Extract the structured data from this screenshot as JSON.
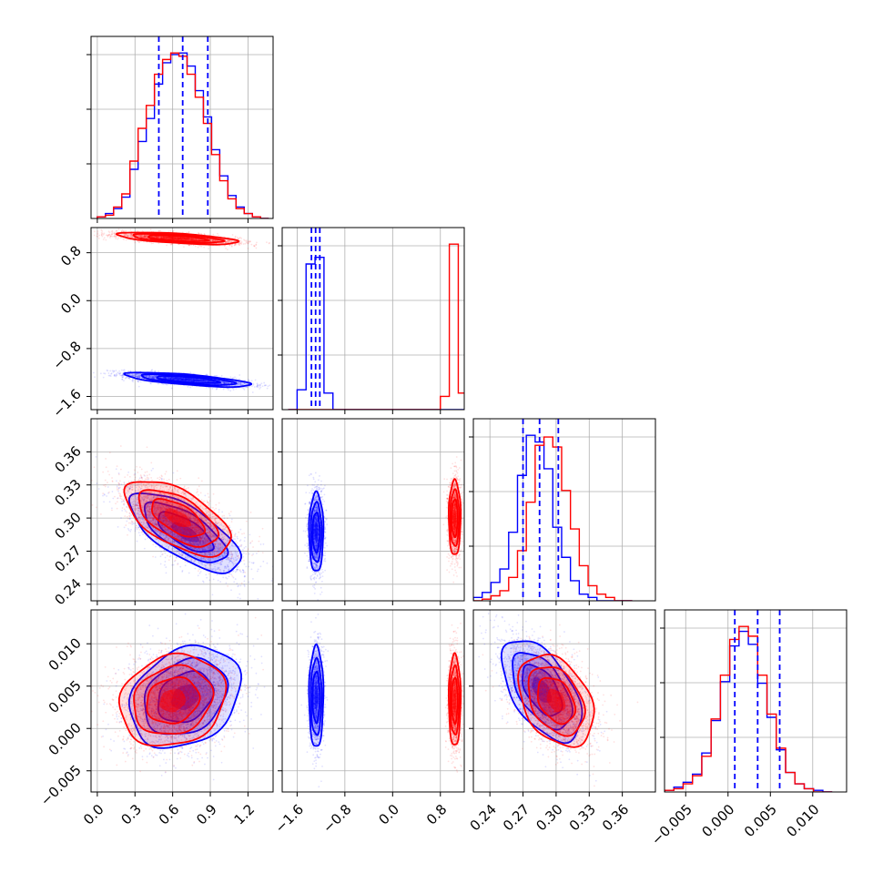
{
  "figure": {
    "type": "corner-plot",
    "series_colors": {
      "blue": "#0000ff",
      "red": "#ff0000"
    },
    "quantile_line_color": "#0000ff",
    "grid": true
  },
  "chart_data": [
    {
      "type": "histogram",
      "param_index": 0,
      "xlim": [
        -0.05,
        1.4
      ],
      "bin_edges": [
        0.0,
        0.065,
        0.13,
        0.195,
        0.26,
        0.325,
        0.39,
        0.455,
        0.52,
        0.585,
        0.65,
        0.715,
        0.78,
        0.845,
        0.91,
        0.975,
        1.04,
        1.105,
        1.17,
        1.235,
        1.3,
        1.365
      ],
      "series": [
        {
          "color": "blue",
          "counts": [
            1,
            3,
            6,
            13,
            30,
            47,
            61,
            82,
            95,
            100,
            101,
            93,
            78,
            62,
            42,
            26,
            14,
            7,
            3,
            1,
            0
          ]
        },
        {
          "color": "red",
          "counts": [
            1,
            2,
            7,
            15,
            35,
            55,
            69,
            88,
            97,
            101,
            99,
            88,
            74,
            58,
            39,
            23,
            12,
            6,
            3,
            1,
            0
          ]
        }
      ],
      "quantiles": [
        0.49,
        0.68,
        0.88
      ]
    },
    {
      "type": "histogram",
      "param_index": 1,
      "xlim": [
        -1.85,
        1.2
      ],
      "bin_edges": [
        -1.75,
        -1.6,
        -1.45,
        -1.3,
        -1.15,
        -1.0,
        -0.85,
        -0.7,
        -0.55,
        -0.4,
        -0.25,
        -0.1,
        0.05,
        0.2,
        0.35,
        0.5,
        0.65,
        0.8,
        0.95,
        1.1,
        1.25
      ],
      "series": [
        {
          "color": "blue",
          "counts": [
            0,
            0.6,
            4.4,
            4.6,
            0.5,
            0,
            0,
            0,
            0,
            0,
            0,
            0,
            0,
            0,
            0,
            0,
            0,
            0,
            0,
            0
          ]
        },
        {
          "color": "red",
          "counts": [
            0,
            0,
            0,
            0,
            0,
            0,
            0,
            0,
            0,
            0,
            0,
            0,
            0,
            0,
            0,
            0,
            0,
            0.4,
            5.0,
            0.5
          ]
        }
      ],
      "quantiles": [
        -1.36,
        -1.29,
        -1.22
      ]
    },
    {
      "type": "histogram",
      "param_index": 2,
      "xlim": [
        0.225,
        0.39
      ],
      "bin_edges": [
        0.225,
        0.233,
        0.241,
        0.249,
        0.257,
        0.265,
        0.273,
        0.281,
        0.289,
        0.297,
        0.305,
        0.313,
        0.321,
        0.329,
        0.337,
        0.345,
        0.353,
        0.361,
        0.369,
        0.377
      ],
      "series": [
        {
          "color": "blue",
          "counts": [
            2,
            5,
            11,
            19,
            41,
            75,
            99,
            95,
            79,
            44,
            26,
            12,
            4,
            2,
            0,
            0,
            0,
            0
          ]
        },
        {
          "color": "red",
          "counts": [
            0,
            1,
            3,
            6,
            14,
            30,
            59,
            93,
            98,
            92,
            66,
            43,
            21,
            9,
            4,
            2,
            0,
            0
          ]
        }
      ],
      "quantiles": [
        0.27,
        0.285,
        0.302
      ]
    },
    {
      "type": "histogram",
      "param_index": 3,
      "xlim": [
        -0.0075,
        0.014
      ],
      "bin_edges": [
        -0.0075,
        -0.0064,
        -0.0053,
        -0.0042,
        -0.0031,
        -0.002,
        -0.0009,
        0.0002,
        0.0013,
        0.0024,
        0.0035,
        0.0046,
        0.0057,
        0.0068,
        0.0079,
        0.009,
        0.0101,
        0.0112,
        0.0123,
        0.0134
      ],
      "series": [
        {
          "color": "blue",
          "counts": [
            1,
            3,
            6,
            11,
            24,
            44,
            68,
            90,
            99,
            91,
            67,
            46,
            26,
            12,
            5,
            2,
            1,
            0
          ]
        },
        {
          "color": "red",
          "counts": [
            1,
            2,
            5,
            10,
            22,
            45,
            72,
            94,
            102,
            96,
            72,
            48,
            27,
            12,
            5,
            2,
            0,
            0
          ]
        }
      ],
      "quantiles": [
        0.0008,
        0.0035,
        0.0061
      ]
    },
    {
      "type": "contour",
      "panel": [
        1,
        0
      ],
      "xlim": [
        -0.05,
        1.4
      ],
      "ylim": [
        -1.82,
        1.22
      ],
      "series": [
        {
          "color": "blue",
          "center": [
            0.72,
            -1.32
          ],
          "sd": [
            0.25,
            0.06
          ],
          "corr": -0.7,
          "n_points": 2200
        },
        {
          "color": "red",
          "center": [
            0.64,
            1.04
          ],
          "sd": [
            0.24,
            0.05
          ],
          "corr": -0.6,
          "n_points": 2200
        }
      ]
    },
    {
      "type": "contour",
      "panel": [
        2,
        0
      ],
      "xlim": [
        -0.05,
        1.4
      ],
      "ylim": [
        0.225,
        0.39
      ],
      "series": [
        {
          "color": "blue",
          "center": [
            0.7,
            0.287
          ],
          "sd": [
            0.22,
            0.018
          ],
          "corr": -0.7,
          "n_points": 2400
        },
        {
          "color": "red",
          "center": [
            0.64,
            0.3
          ],
          "sd": [
            0.21,
            0.017
          ],
          "corr": -0.6,
          "n_points": 2400
        }
      ]
    },
    {
      "type": "contour",
      "panel": [
        2,
        1
      ],
      "xlim": [
        -1.85,
        1.2
      ],
      "ylim": [
        0.225,
        0.39
      ],
      "series": [
        {
          "color": "blue",
          "center": [
            -1.28,
            0.287
          ],
          "sd": [
            0.06,
            0.018
          ],
          "corr": 0.0,
          "n_points": 1800
        },
        {
          "color": "red",
          "center": [
            1.04,
            0.3
          ],
          "sd": [
            0.05,
            0.017
          ],
          "corr": 0.0,
          "n_points": 1800
        }
      ]
    },
    {
      "type": "contour",
      "panel": [
        3,
        0
      ],
      "xlim": [
        -0.05,
        1.4
      ],
      "ylim": [
        -0.0075,
        0.014
      ],
      "series": [
        {
          "color": "blue",
          "center": [
            0.7,
            0.0037
          ],
          "sd": [
            0.22,
            0.003
          ],
          "corr": 0.25,
          "n_points": 2400
        },
        {
          "color": "red",
          "center": [
            0.6,
            0.0033
          ],
          "sd": [
            0.21,
            0.0027
          ],
          "corr": 0.15,
          "n_points": 2400
        }
      ]
    },
    {
      "type": "contour",
      "panel": [
        3,
        1
      ],
      "xlim": [
        -1.85,
        1.2
      ],
      "ylim": [
        -0.0075,
        0.014
      ],
      "series": [
        {
          "color": "blue",
          "center": [
            -1.28,
            0.0037
          ],
          "sd": [
            0.06,
            0.003
          ],
          "corr": 0.0,
          "n_points": 1800
        },
        {
          "color": "red",
          "center": [
            1.04,
            0.0033
          ],
          "sd": [
            0.05,
            0.0027
          ],
          "corr": 0.0,
          "n_points": 1800
        }
      ]
    },
    {
      "type": "contour",
      "panel": [
        3,
        2
      ],
      "xlim": [
        0.225,
        0.39
      ],
      "ylim": [
        -0.0075,
        0.014
      ],
      "series": [
        {
          "color": "blue",
          "center": [
            0.287,
            0.0045
          ],
          "sd": [
            0.018,
            0.003
          ],
          "corr": -0.55,
          "n_points": 2400
        },
        {
          "color": "red",
          "center": [
            0.3,
            0.0033
          ],
          "sd": [
            0.017,
            0.0027
          ],
          "corr": -0.35,
          "n_points": 2400
        }
      ]
    }
  ],
  "axes": {
    "param0": {
      "ticks": [
        0.0,
        0.3,
        0.6,
        0.9,
        1.2
      ],
      "labels": [
        "0.0",
        "0.3",
        "0.6",
        "0.9",
        "1.2"
      ]
    },
    "param1": {
      "ticks": [
        -1.6,
        -0.8,
        0.0,
        0.8
      ],
      "labels": [
        "−1.6",
        "−0.8",
        "0.0",
        "0.8"
      ]
    },
    "param2": {
      "ticks": [
        0.24,
        0.27,
        0.3,
        0.33,
        0.36
      ],
      "labels": [
        "0.24",
        "0.27",
        "0.30",
        "0.33",
        "0.36"
      ]
    },
    "param3": {
      "ticks": [
        -0.005,
        0.0,
        0.005,
        0.01
      ],
      "labels": [
        "−0.005",
        "0.000",
        "0.005",
        "0.010"
      ]
    }
  }
}
